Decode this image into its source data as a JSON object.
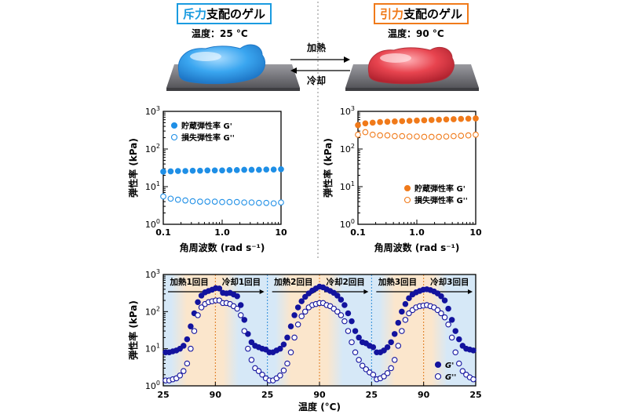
{
  "left_panel": {
    "title_accent": "斥力",
    "title_rest": "支配のゲル",
    "temperature": "温度：25 °C",
    "accent_color": "#1a9be0",
    "border_color": "#1a9be0"
  },
  "right_panel": {
    "title_accent": "引力",
    "title_rest": "支配のゲル",
    "temperature": "温度：90 °C",
    "accent_color": "#f07a1a",
    "border_color": "#f07a1a"
  },
  "process_arrows": {
    "heat_label": "加熱",
    "cool_label": "冷却"
  },
  "colors": {
    "blue_series": "#1f8fe6",
    "orange_series": "#f07a1a",
    "navy_series": "#13139e",
    "heat_band": "#fbe6cc",
    "cool_band": "#d6e8f7",
    "gel_blue": "#3aa6f0",
    "gel_red": "#e8444f",
    "plate": "#7d7d82"
  },
  "chart_data": [
    {
      "type": "scatter",
      "ylabel": "弾性率 (kPa)",
      "xlabel": "角周波数 (rad s⁻¹)",
      "x_scale": "log",
      "y_scale": "log",
      "xlim": [
        0.1,
        10
      ],
      "ylim": [
        1,
        1000
      ],
      "x_ticks": [
        "0.1",
        "1.0",
        "10"
      ],
      "y_ticks": [
        "10⁰",
        "10¹",
        "10²",
        "10³"
      ],
      "legend_position": "top-left",
      "x": [
        0.1,
        0.1334,
        0.1778,
        0.2371,
        0.3162,
        0.4217,
        0.5623,
        0.7499,
        1.0,
        1.3335,
        1.7783,
        2.3714,
        3.1623,
        4.217,
        5.6234,
        7.4989,
        10.0
      ],
      "series": [
        {
          "name": "貯蔵弾性率 G'",
          "filled": true,
          "values": [
            25,
            25.5,
            26,
            26,
            26.5,
            26.5,
            27,
            27,
            27,
            27.5,
            27.5,
            28,
            28,
            28,
            28.5,
            28.5,
            29
          ]
        },
        {
          "name": "損失弾性率 G''",
          "filled": false,
          "values": [
            5.5,
            4.8,
            4.5,
            4.3,
            4.1,
            4.0,
            4.0,
            4.0,
            3.9,
            3.9,
            3.9,
            3.8,
            3.8,
            3.7,
            3.7,
            3.6,
            3.8
          ]
        }
      ]
    },
    {
      "type": "scatter",
      "ylabel": "弾性率 (kPa)",
      "xlabel": "角周波数 (rad s⁻¹)",
      "x_scale": "log",
      "y_scale": "log",
      "xlim": [
        0.1,
        10
      ],
      "ylim": [
        1,
        1000
      ],
      "x_ticks": [
        "0.1",
        "1.0",
        "10"
      ],
      "y_ticks": [
        "10⁰",
        "10¹",
        "10²",
        "10³"
      ],
      "legend_position": "bottom-right",
      "x": [
        0.1,
        0.1334,
        0.1778,
        0.2371,
        0.3162,
        0.4217,
        0.5623,
        0.7499,
        1.0,
        1.3335,
        1.7783,
        2.3714,
        3.1623,
        4.217,
        5.6234,
        7.4989,
        10.0
      ],
      "series": [
        {
          "name": "貯蔵弾性率 G'",
          "filled": true,
          "values": [
            430,
            480,
            500,
            520,
            530,
            540,
            550,
            560,
            570,
            580,
            590,
            600,
            610,
            620,
            630,
            640,
            650
          ]
        },
        {
          "name": "損失弾性率 G''",
          "filled": false,
          "values": [
            240,
            280,
            240,
            230,
            230,
            220,
            220,
            215,
            215,
            210,
            210,
            210,
            215,
            220,
            225,
            230,
            240
          ]
        }
      ]
    },
    {
      "type": "scatter",
      "ylabel": "弾性率 (kPa)",
      "xlabel": "温度 (°C)",
      "y_scale": "log",
      "ylim": [
        1,
        1000
      ],
      "x_ticks": [
        "25",
        "90",
        "25",
        "90",
        "25",
        "90",
        "25"
      ],
      "y_ticks": [
        "10⁰",
        "10¹",
        "10²",
        "10³"
      ],
      "legend_position": "bottom-right",
      "segments": [
        "加熱1回目",
        "冷却1回目",
        "加熱2回目",
        "冷却2回目",
        "加熱3回目",
        "冷却3回目"
      ],
      "series": [
        {
          "name": "G'",
          "filled": true,
          "values": [
            8,
            8,
            8.5,
            9,
            10,
            12,
            18,
            40,
            90,
            180,
            270,
            330,
            360,
            390,
            430,
            420,
            320,
            310,
            320,
            290,
            260,
            150,
            60,
            25,
            15,
            12,
            11,
            10,
            9.5,
            8,
            8,
            9,
            10,
            13,
            20,
            40,
            80,
            130,
            190,
            250,
            310,
            370,
            420,
            470,
            450,
            400,
            360,
            320,
            270,
            210,
            150,
            90,
            55,
            30,
            20,
            15,
            14,
            12,
            11,
            8,
            8,
            9,
            11,
            15,
            25,
            50,
            100,
            160,
            230,
            290,
            330,
            360,
            390,
            400,
            380,
            350,
            310,
            260,
            200,
            120,
            60,
            30,
            18,
            12,
            10,
            9.5,
            9
          ]
        },
        {
          "name": "G''",
          "filled": false,
          "values": [
            1.4,
            1.4,
            1.5,
            1.6,
            1.9,
            2.5,
            4,
            10,
            30,
            80,
            130,
            160,
            180,
            190,
            200,
            200,
            170,
            170,
            160,
            140,
            120,
            80,
            30,
            10,
            5,
            3,
            2.5,
            2,
            1.6,
            1.4,
            1.4,
            1.6,
            1.9,
            2.6,
            4,
            8,
            20,
            45,
            75,
            100,
            130,
            150,
            160,
            170,
            170,
            150,
            140,
            120,
            100,
            80,
            55,
            30,
            15,
            8,
            5,
            3.5,
            2.8,
            2.3,
            2,
            1.5,
            1.6,
            1.8,
            2.2,
            3,
            5,
            12,
            30,
            60,
            90,
            110,
            130,
            140,
            145,
            150,
            140,
            130,
            110,
            90,
            70,
            45,
            20,
            8,
            4,
            2.5,
            2,
            1.7,
            1.5
          ]
        }
      ]
    }
  ]
}
